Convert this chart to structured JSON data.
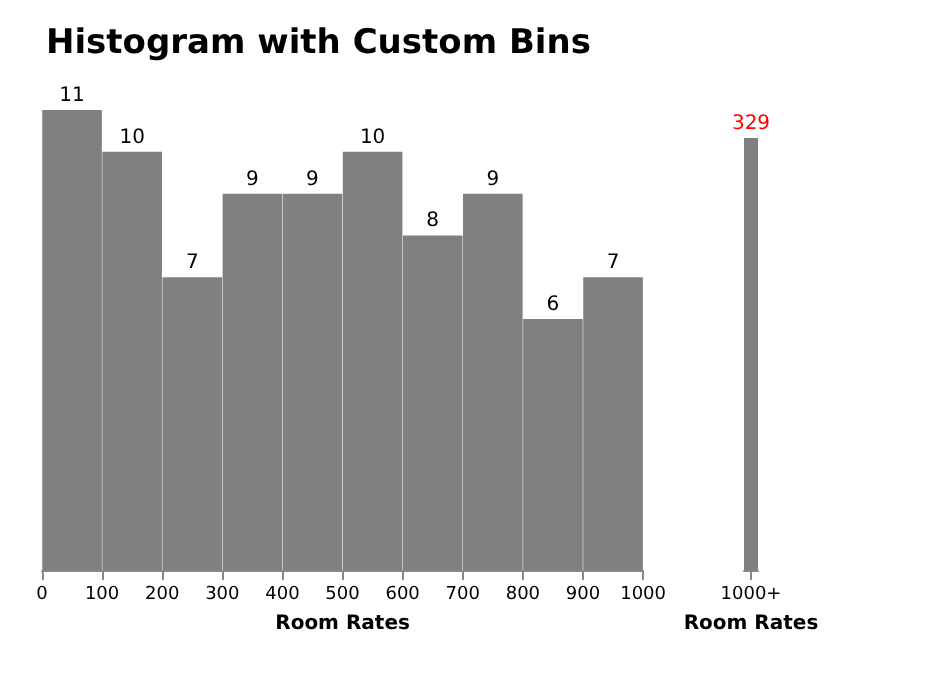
{
  "chart_data": [
    {
      "type": "bar",
      "title": "Histogram with Custom Bins",
      "xlabel": "Room Rates",
      "x": [
        50,
        150,
        250,
        350,
        450,
        550,
        650,
        750,
        850,
        950
      ],
      "values": [
        11,
        10,
        7,
        9,
        9,
        10,
        8,
        9,
        6,
        7
      ],
      "color": "#808080",
      "xlim": [
        0,
        1000
      ],
      "xticks": [
        0,
        100,
        200,
        300,
        400,
        500,
        600,
        700,
        800,
        900,
        1000
      ],
      "data_labels": true,
      "tick_labels": "x",
      "grid": false
    },
    {
      "type": "bar",
      "xlabel": "Room Rates",
      "categories": [
        "1000+"
      ],
      "values": [
        329
      ],
      "color": "#808080",
      "data_labels": true,
      "tick_labels": "x",
      "grid": false
    }
  ]
}
